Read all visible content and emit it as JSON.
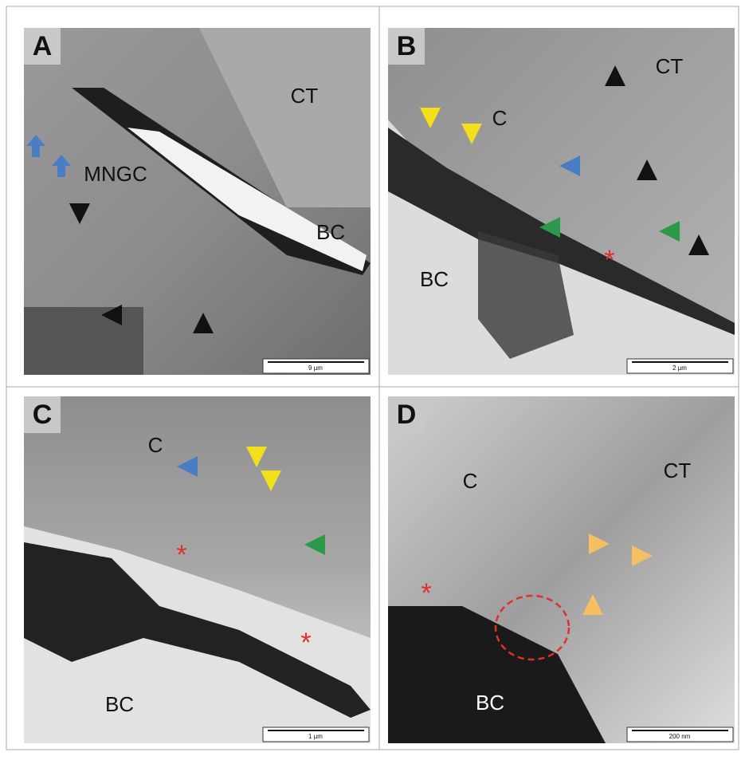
{
  "panels": [
    {
      "letter": "A",
      "labels": [
        "CT",
        "MNGC",
        "BC"
      ],
      "scale_bar": "9 µm"
    },
    {
      "letter": "B",
      "labels": [
        "C",
        "CT",
        "BC",
        "*"
      ],
      "scale_bar": "2 µm"
    },
    {
      "letter": "C",
      "labels": [
        "C",
        "BC",
        "*",
        "*"
      ],
      "scale_bar": "1 µm"
    },
    {
      "letter": "D",
      "labels": [
        "C",
        "CT",
        "BC",
        "*"
      ],
      "scale_bar": "200 nm"
    }
  ]
}
